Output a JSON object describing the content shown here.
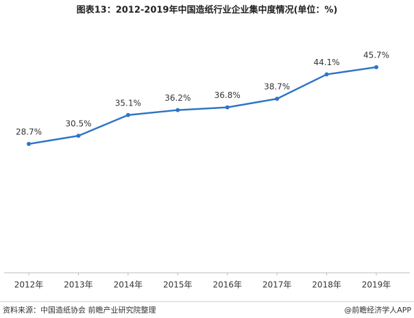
{
  "chart_data": {
    "type": "line",
    "title": "图表13：2012-2019年中国造纸行业企业集中度情况(单位：%)",
    "categories": [
      "2012年",
      "2013年",
      "2014年",
      "2015年",
      "2016年",
      "2017年",
      "2018年",
      "2019年"
    ],
    "values": [
      28.7,
      30.5,
      35.1,
      36.2,
      36.8,
      38.7,
      44.1,
      45.7
    ],
    "value_labels": [
      "28.7%",
      "30.5%",
      "35.1%",
      "36.2%",
      "36.8%",
      "38.7%",
      "44.1%",
      "45.7%"
    ],
    "color": "#2e75c6",
    "source": "资料来源：中国造纸协会 前瞻产业研究院整理",
    "credit": "@前瞻经济学人APP"
  }
}
